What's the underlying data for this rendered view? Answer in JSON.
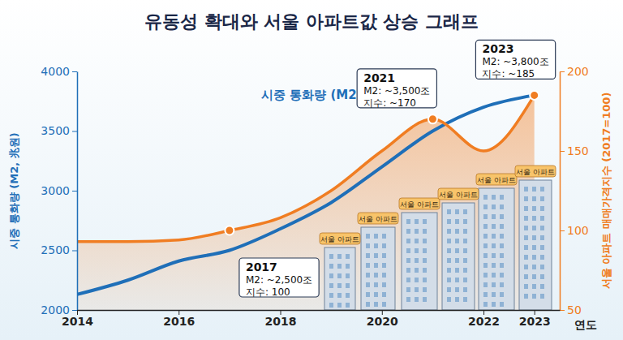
{
  "chart_data": {
    "type": "line",
    "title": "유동성 확대와 서울 아파트값 상승 그래프",
    "x": [
      2014,
      2015,
      2016,
      2017,
      2018,
      2019,
      2020,
      2021,
      2022,
      2023
    ],
    "xlim": [
      2014,
      2023.5
    ],
    "xticks": [
      2014,
      2016,
      2018,
      2020,
      2022,
      2023
    ],
    "x_label": "연도",
    "y_label": "시중 통화량 (M2, 兆원)",
    "ylim": [
      2000,
      4000
    ],
    "yticks": [
      2000,
      2500,
      3000,
      3500,
      4000
    ],
    "y2_label": "서울 아파트 매매가격지수 (2017=100)",
    "y2lim": [
      50,
      200
    ],
    "y2ticks": [
      50,
      100,
      150,
      200
    ],
    "series": [
      {
        "name": "시중 통화량 (M2)",
        "color": "#1f6fb8",
        "type": "line",
        "values": [
          2130,
          2250,
          2410,
          2500,
          2680,
          2900,
          3200,
          3500,
          3700,
          3800
        ]
      },
      {
        "color": "#f07d22",
        "type": "area",
        "axis": "y2",
        "values": [
          93,
          93,
          94,
          100,
          108,
          125,
          150,
          170,
          150,
          185
        ]
      }
    ],
    "annotations": [
      {
        "x": 2017,
        "title": "2017",
        "lines": [
          "M2: ~2,500조",
          "지수: 100"
        ]
      },
      {
        "x": 2021,
        "title": "2021",
        "lines": [
          "M2: ~3,500조",
          "지수: ~170"
        ]
      },
      {
        "x": 2023,
        "title": "2023",
        "lines": [
          "M2: ~3,800조",
          "지수: ~185"
        ]
      }
    ],
    "building_label": "서울 아파트",
    "grid": false
  }
}
